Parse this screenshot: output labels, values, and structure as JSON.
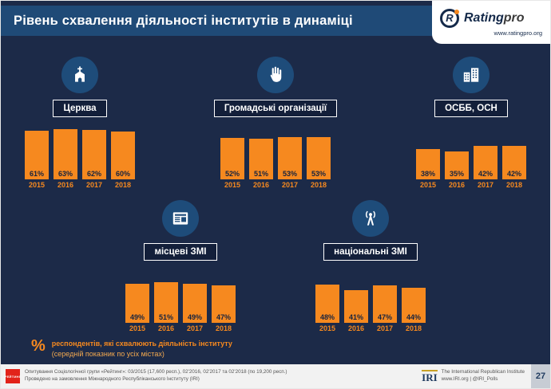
{
  "title": "Рівень схвалення діяльності інститутів в динаміці",
  "brand": {
    "mark": "R",
    "name_bold": "Rating",
    "name_accent": "pro",
    "url": "www.ratingpro.org"
  },
  "note": {
    "symbol": "%",
    "line1": "респондентів, які схвалюють діяльність інституту",
    "line2": "(середній показник по усіх містах)"
  },
  "footer": {
    "rating_logo": "РЕЙТИНГ",
    "source_line1": "Опитування Соціологічної групи «Рейтинг»: 03/2015 (17,600 респ.), 02'2016, 02'2017 та 02'2018 (по 19,200 респ.)",
    "source_line2": "Проведено на замовлення Міжнародного Республіканського Інституту (IRI)",
    "iri_logo": "IRI",
    "iri_line1": "The International Republican Institute",
    "iri_line2": "www.IRI.org | @IRI_Polls",
    "page_number": "27"
  },
  "colors": {
    "accent_orange": "#F6891F",
    "background_navy": "#1C2A48",
    "header_blue": "#1F4A77",
    "icon_circle_blue": "#1E4C7A"
  },
  "chart_data": {
    "type": "bar",
    "unit": "%",
    "ylim": [
      0,
      100
    ],
    "categories": [
      "2015",
      "2016",
      "2017",
      "2018"
    ],
    "groups": [
      {
        "label": "Церква",
        "icon": "church-icon",
        "values": [
          61,
          63,
          62,
          60
        ],
        "value_labels": [
          "61%",
          "63%",
          "62%",
          "60%"
        ]
      },
      {
        "label": "Громадські організації",
        "icon": "hand-icon",
        "values": [
          52,
          51,
          53,
          53
        ],
        "value_labels": [
          "52%",
          "51%",
          "53%",
          "53%"
        ]
      },
      {
        "label": "ОСББ, ОСН",
        "icon": "buildings-icon",
        "values": [
          38,
          35,
          42,
          42
        ],
        "value_labels": [
          "38%",
          "35%",
          "42%",
          "42%"
        ]
      },
      {
        "label": "місцеві ЗМІ",
        "icon": "newspaper-icon",
        "values": [
          49,
          51,
          49,
          47
        ],
        "value_labels": [
          "49%",
          "51%",
          "49%",
          "47%"
        ]
      },
      {
        "label": "національні ЗМІ",
        "icon": "broadcast-tower-icon",
        "values": [
          48,
          41,
          47,
          44
        ],
        "value_labels": [
          "48%",
          "41%",
          "47%",
          "44%"
        ]
      }
    ]
  }
}
